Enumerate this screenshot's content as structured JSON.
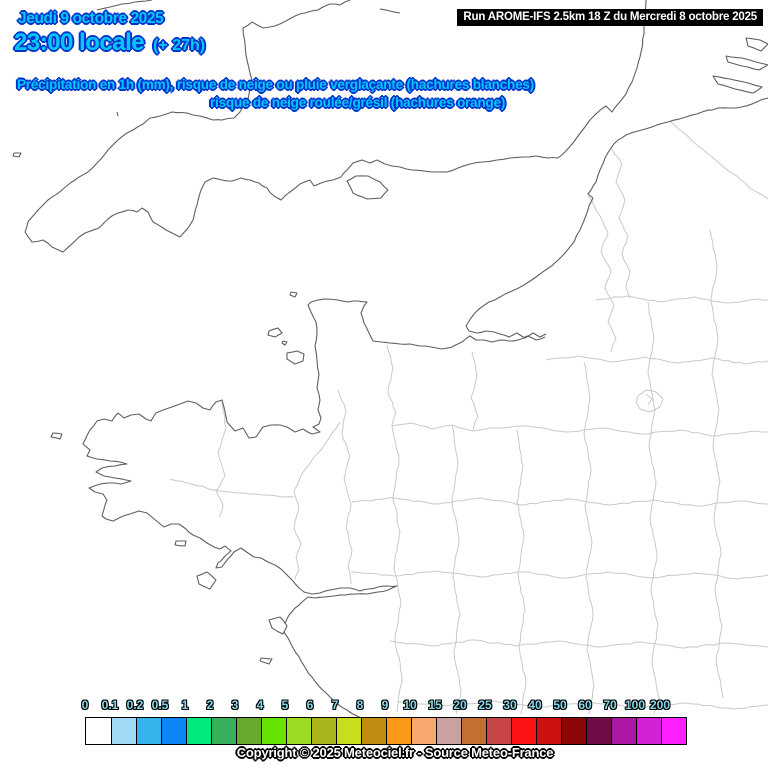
{
  "header": {
    "date_line": "Jeudi 9 octobre 2025",
    "time_line": "23:00 locale",
    "time_offset": "(+ 27h)",
    "run_info": "Run AROME-IFS 2.5km 18 Z du Mercredi 8 octobre 2025"
  },
  "subtitle": {
    "line1": "Précipitation en 1h (mm), risque de neige ou pluie verglaçante (hachures blanches)",
    "line2": "risque de neige roulée/grésil (hachures orange)"
  },
  "legend": {
    "unit": "mm",
    "labels": [
      "0",
      "0.1",
      "0.2",
      "0.5",
      "1",
      "2",
      "3",
      "4",
      "5",
      "6",
      "7",
      "8",
      "9",
      "10",
      "15",
      "20",
      "25",
      "30",
      "40",
      "50",
      "60",
      "70",
      "100",
      "200"
    ],
    "colors": [
      "#ffffff",
      "#a2d9f7",
      "#33b5ec",
      "#0b86f8",
      "#00e97e",
      "#36b05a",
      "#67aa2e",
      "#66e400",
      "#9cdc24",
      "#a9b51b",
      "#c9dd1f",
      "#c08d10",
      "#f99916",
      "#f9a96e",
      "#c9a1a1",
      "#c17031",
      "#c64545",
      "#fb1413",
      "#cd1111",
      "#8c0707",
      "#6f0d46",
      "#ac18a6",
      "#d521d5",
      "#ff1fff"
    ],
    "label_color": "#86d7e8"
  },
  "footer": {
    "copyright": "Copyright © 2025 Meteociel.fr - Source Meteo-France"
  },
  "colors": {
    "headline_fill": "#00c8ff",
    "headline_outline": "#0033cc",
    "coastline": "#5f5f5f",
    "department_border": "#c9c9c9",
    "run_bar_bg": "#000000",
    "run_bar_text": "#ffffff"
  }
}
